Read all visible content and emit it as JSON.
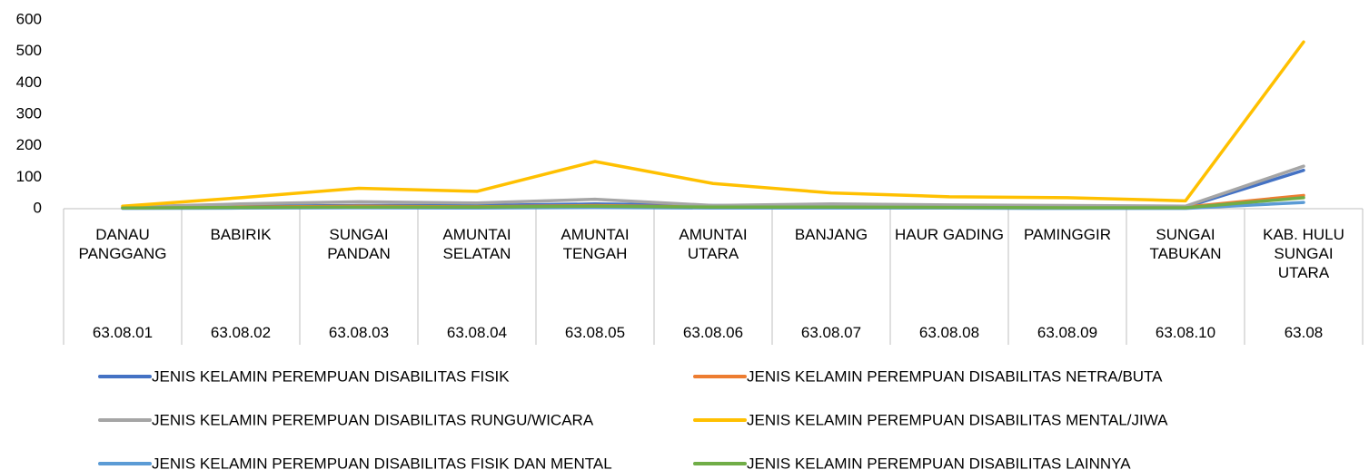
{
  "chart_data": {
    "type": "line",
    "categories": [
      "DANAU PANGGANG",
      "BABIRIK",
      "SUNGAI PANDAN",
      "AMUNTAI SELATAN",
      "AMUNTAI TENGAH",
      "AMUNTAI UTARA",
      "BANJANG",
      "HAUR GADING",
      "PAMINGGIR",
      "SUNGAI TABUKAN",
      "KAB. HULU SUNGAI UTARA"
    ],
    "category_codes": [
      "63.08.01",
      "63.08.02",
      "63.08.03",
      "63.08.04",
      "63.08.05",
      "63.08.06",
      "63.08.07",
      "63.08.08",
      "63.08.09",
      "63.08.10",
      "63.08"
    ],
    "ylim": [
      0,
      600
    ],
    "yticks": [
      0,
      100,
      200,
      300,
      400,
      500,
      600
    ],
    "grid": false,
    "series": [
      {
        "name": "JENIS KELAMIN PEREMPUAN DISABILITAS FISIK",
        "color": "#4472c4",
        "values": [
          3,
          8,
          10,
          10,
          15,
          10,
          8,
          8,
          5,
          5,
          122
        ]
      },
      {
        "name": "JENIS KELAMIN PEREMPUAN DISABILITAS NETRA/BUTA",
        "color": "#ed7d31",
        "values": [
          2,
          5,
          8,
          6,
          10,
          5,
          6,
          5,
          4,
          5,
          42
        ]
      },
      {
        "name": "JENIS KELAMIN PEREMPUAN DISABILITAS RUNGU/WICARA",
        "color": "#a5a5a5",
        "values": [
          5,
          15,
          22,
          18,
          30,
          10,
          15,
          12,
          10,
          8,
          135
        ]
      },
      {
        "name": "JENIS KELAMIN PEREMPUAN DISABILITAS MENTAL/JIWA",
        "color": "#ffc000",
        "values": [
          8,
          35,
          65,
          55,
          150,
          80,
          50,
          38,
          35,
          25,
          530
        ]
      },
      {
        "name": "JENIS KELAMIN PEREMPUAN DISABILITAS FISIK DAN MENTAL",
        "color": "#5b9bd5",
        "values": [
          1,
          2,
          3,
          2,
          4,
          2,
          2,
          2,
          1,
          1,
          20
        ]
      },
      {
        "name": "JENIS KELAMIN PEREMPUAN DISABILITAS LAINNYA",
        "color": "#70ad47",
        "values": [
          2,
          4,
          5,
          5,
          8,
          5,
          5,
          4,
          3,
          3,
          35
        ]
      }
    ]
  }
}
